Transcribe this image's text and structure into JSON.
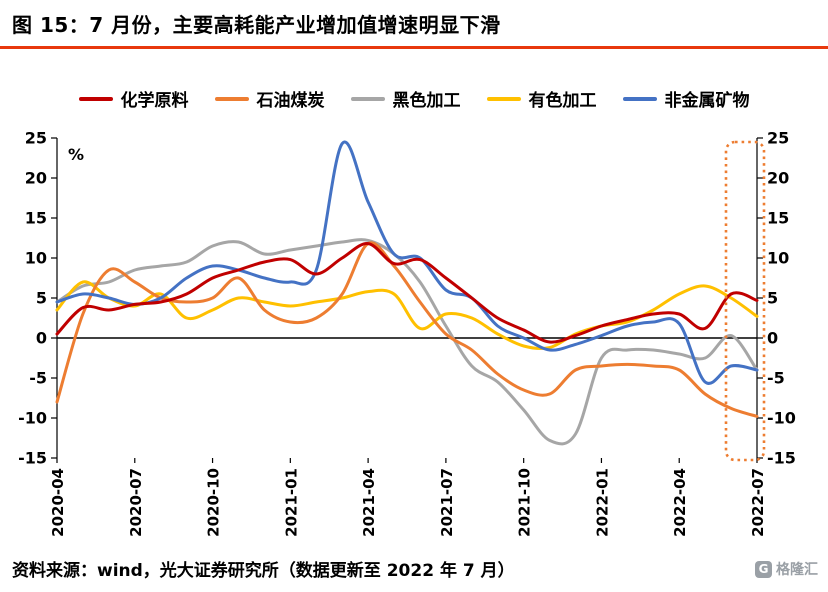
{
  "title": "图 15：7 月份，主要高耗能产业增加值增速明显下滑",
  "footer": {
    "source": "资料来源：wind，光大证券研究所（数据更新至 2022 年 7 月）",
    "logo": "格隆汇",
    "logo_mark": "G"
  },
  "colors": {
    "accent": "#E8380D",
    "axis": "#000000",
    "highlight": "#ED7D31"
  },
  "chart_data": {
    "type": "line",
    "title": "主要高耗能产业增加值增速（%）",
    "unit_label": "%",
    "ylim": [
      -15,
      25
    ],
    "ytick_step": 5,
    "grid": false,
    "legend_position": "top",
    "xtick_every": 3,
    "x": [
      "2020-04",
      "2020-05",
      "2020-06",
      "2020-07",
      "2020-08",
      "2020-09",
      "2020-10",
      "2020-11",
      "2020-12",
      "2021-01",
      "2021-02",
      "2021-03",
      "2021-04",
      "2021-05",
      "2021-06",
      "2021-07",
      "2021-08",
      "2021-09",
      "2021-10",
      "2021-11",
      "2021-12",
      "2022-01",
      "2022-02",
      "2022-03",
      "2022-04",
      "2022-05",
      "2022-06",
      "2022-07"
    ],
    "series": [
      {
        "name": "化学原料",
        "color": "#C00000",
        "values": [
          0.5,
          3.8,
          3.5,
          4.2,
          4.5,
          5.5,
          7.5,
          8.5,
          9.5,
          9.8,
          8.0,
          10.0,
          11.8,
          9.3,
          9.8,
          7.5,
          5.0,
          2.5,
          1.0,
          -0.5,
          0.3,
          1.5,
          2.3,
          3.0,
          3.0,
          1.2,
          5.5,
          4.7
        ]
      },
      {
        "name": "石油煤炭",
        "color": "#ED7D31",
        "values": [
          -8.0,
          3.0,
          8.5,
          7.0,
          5.0,
          4.5,
          5.0,
          7.5,
          3.5,
          2.0,
          2.5,
          5.5,
          11.8,
          9.0,
          4.5,
          0.5,
          -1.5,
          -4.5,
          -6.5,
          -7.0,
          -4.0,
          -3.5,
          -3.3,
          -3.5,
          -4.0,
          -7.0,
          -8.8,
          -9.8
        ]
      },
      {
        "name": "黑色加工",
        "color": "#A6A6A6",
        "values": [
          4.5,
          6.5,
          7.0,
          8.5,
          9.0,
          9.5,
          11.5,
          12.0,
          10.5,
          11.0,
          11.5,
          12.0,
          12.2,
          10.5,
          7.0,
          1.5,
          -3.5,
          -5.5,
          -9.0,
          -12.8,
          -12.0,
          -2.5,
          -1.5,
          -1.5,
          -2.0,
          -2.5,
          0.3,
          -4.0
        ]
      },
      {
        "name": "有色加工",
        "color": "#FFC000",
        "values": [
          3.5,
          7.0,
          5.0,
          4.0,
          5.5,
          2.5,
          3.5,
          5.0,
          4.5,
          4.0,
          4.5,
          5.0,
          5.8,
          5.5,
          1.2,
          3.0,
          2.5,
          0.5,
          -1.0,
          -1.2,
          0.5,
          1.5,
          2.0,
          3.5,
          5.5,
          6.5,
          5.0,
          2.7
        ]
      },
      {
        "name": "非金属矿物",
        "color": "#4472C4",
        "values": [
          4.5,
          5.5,
          5.0,
          4.2,
          5.0,
          7.5,
          9.0,
          8.5,
          7.5,
          7.0,
          8.5,
          24.3,
          17.0,
          10.5,
          10.0,
          6.0,
          5.0,
          1.5,
          0.0,
          -1.5,
          -0.8,
          0.3,
          1.5,
          2.0,
          1.8,
          -5.5,
          -3.5,
          -4.0
        ]
      }
    ],
    "highlight": {
      "color": "#ED7D31",
      "label_months": [
        "2022-07"
      ],
      "style": "dotted-box"
    }
  }
}
